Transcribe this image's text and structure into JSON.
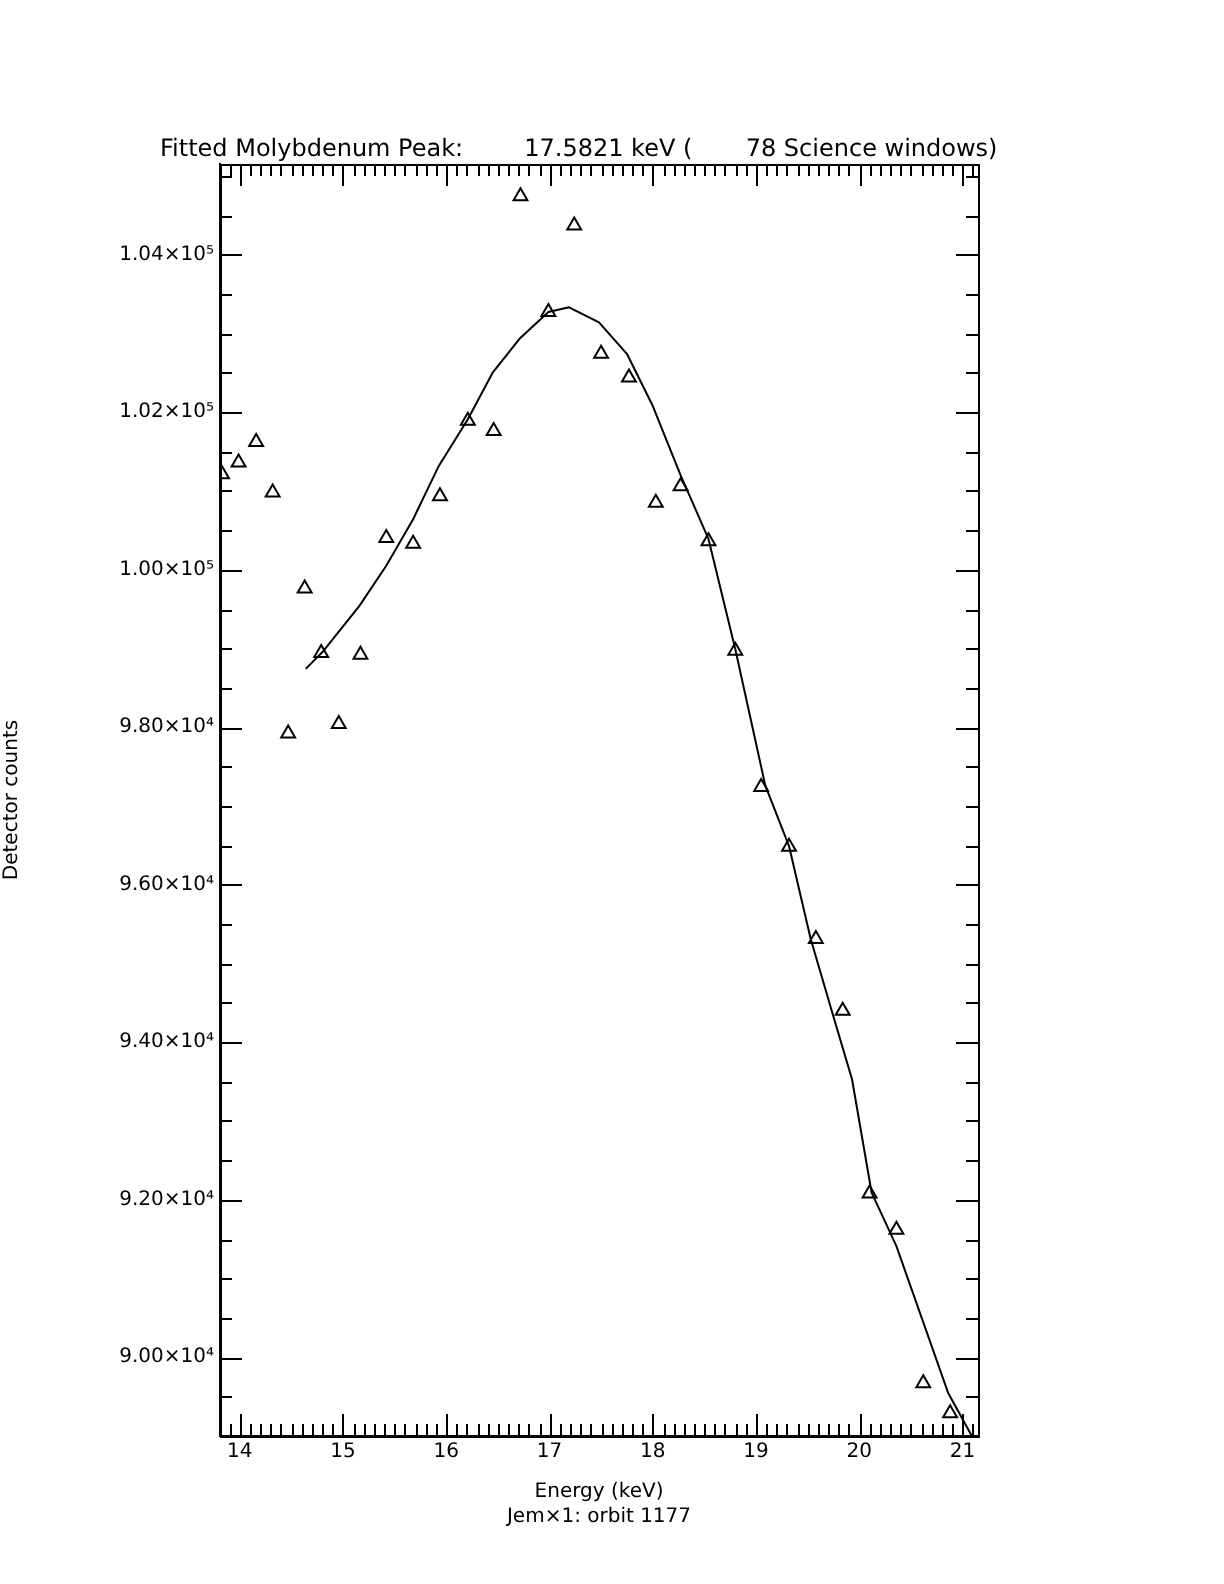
{
  "chart_data": {
    "type": "scatter",
    "title": "Fitted Molybdenum Peak:        17.5821 keV (       78 Science windows)",
    "xlabel": "Energy (keV)",
    "ylabel": "Detector counts",
    "annotations": [
      "Jem×1: orbit 1177"
    ],
    "xlim": [
      13.81,
      21.15
    ],
    "ylim": [
      89000,
      105150
    ],
    "xticks": [
      {
        "value": 13.9,
        "label": null
      },
      {
        "value": 14,
        "label": "14"
      },
      {
        "value": 14.1,
        "label": null
      },
      {
        "value": 14.2,
        "label": null
      },
      {
        "value": 14.3,
        "label": null
      },
      {
        "value": 14.4,
        "label": null
      },
      {
        "value": 14.5,
        "label": null
      },
      {
        "value": 14.6,
        "label": null
      },
      {
        "value": 14.7,
        "label": null
      },
      {
        "value": 14.8,
        "label": null
      },
      {
        "value": 14.9,
        "label": null
      },
      {
        "value": 15,
        "label": "15"
      },
      {
        "value": 15.1,
        "label": null
      },
      {
        "value": 15.2,
        "label": null
      },
      {
        "value": 15.3,
        "label": null
      },
      {
        "value": 15.4,
        "label": null
      },
      {
        "value": 15.5,
        "label": null
      },
      {
        "value": 15.6,
        "label": null
      },
      {
        "value": 15.7,
        "label": null
      },
      {
        "value": 15.8,
        "label": null
      },
      {
        "value": 15.9,
        "label": null
      },
      {
        "value": 16,
        "label": "16"
      },
      {
        "value": 16.1,
        "label": null
      },
      {
        "value": 16.2,
        "label": null
      },
      {
        "value": 16.3,
        "label": null
      },
      {
        "value": 16.4,
        "label": null
      },
      {
        "value": 16.5,
        "label": null
      },
      {
        "value": 16.6,
        "label": null
      },
      {
        "value": 16.7,
        "label": null
      },
      {
        "value": 16.8,
        "label": null
      },
      {
        "value": 16.9,
        "label": null
      },
      {
        "value": 17,
        "label": "17"
      },
      {
        "value": 17.1,
        "label": null
      },
      {
        "value": 17.2,
        "label": null
      },
      {
        "value": 17.3,
        "label": null
      },
      {
        "value": 17.4,
        "label": null
      },
      {
        "value": 17.5,
        "label": null
      },
      {
        "value": 17.6,
        "label": null
      },
      {
        "value": 17.7,
        "label": null
      },
      {
        "value": 17.8,
        "label": null
      },
      {
        "value": 17.9,
        "label": null
      },
      {
        "value": 18,
        "label": "18"
      },
      {
        "value": 18.1,
        "label": null
      },
      {
        "value": 18.2,
        "label": null
      },
      {
        "value": 18.3,
        "label": null
      },
      {
        "value": 18.4,
        "label": null
      },
      {
        "value": 18.5,
        "label": null
      },
      {
        "value": 18.6,
        "label": null
      },
      {
        "value": 18.7,
        "label": null
      },
      {
        "value": 18.8,
        "label": null
      },
      {
        "value": 18.9,
        "label": null
      },
      {
        "value": 19,
        "label": "19"
      },
      {
        "value": 19.1,
        "label": null
      },
      {
        "value": 19.2,
        "label": null
      },
      {
        "value": 19.3,
        "label": null
      },
      {
        "value": 19.4,
        "label": null
      },
      {
        "value": 19.5,
        "label": null
      },
      {
        "value": 19.6,
        "label": null
      },
      {
        "value": 19.7,
        "label": null
      },
      {
        "value": 19.8,
        "label": null
      },
      {
        "value": 19.9,
        "label": null
      },
      {
        "value": 20,
        "label": "20"
      },
      {
        "value": 20.1,
        "label": null
      },
      {
        "value": 20.2,
        "label": null
      },
      {
        "value": 20.3,
        "label": null
      },
      {
        "value": 20.4,
        "label": null
      },
      {
        "value": 20.5,
        "label": null
      },
      {
        "value": 20.6,
        "label": null
      },
      {
        "value": 20.7,
        "label": null
      },
      {
        "value": 20.8,
        "label": null
      },
      {
        "value": 20.9,
        "label": null
      },
      {
        "value": 21,
        "label": "21"
      },
      {
        "value": 21.1,
        "label": null
      }
    ],
    "yticks": [
      {
        "value": 89500,
        "label": null
      },
      {
        "value": 90000,
        "label": "9.00×10⁴"
      },
      {
        "value": 90500,
        "label": null
      },
      {
        "value": 91000,
        "label": null
      },
      {
        "value": 91500,
        "label": null
      },
      {
        "value": 92000,
        "label": "9.20×10⁴"
      },
      {
        "value": 92500,
        "label": null
      },
      {
        "value": 93000,
        "label": null
      },
      {
        "value": 93500,
        "label": null
      },
      {
        "value": 94000,
        "label": "9.40×10⁴"
      },
      {
        "value": 94500,
        "label": null
      },
      {
        "value": 95000,
        "label": null
      },
      {
        "value": 95500,
        "label": null
      },
      {
        "value": 96000,
        "label": "9.60×10⁴"
      },
      {
        "value": 96500,
        "label": null
      },
      {
        "value": 97000,
        "label": null
      },
      {
        "value": 97500,
        "label": null
      },
      {
        "value": 98000,
        "label": "9.80×10⁴"
      },
      {
        "value": 98500,
        "label": null
      },
      {
        "value": 99000,
        "label": null
      },
      {
        "value": 99500,
        "label": null
      },
      {
        "value": 100000,
        "label": "1.00×10⁵"
      },
      {
        "value": 100500,
        "label": null
      },
      {
        "value": 101000,
        "label": null
      },
      {
        "value": 101500,
        "label": null
      },
      {
        "value": 102000,
        "label": "1.02×10⁵"
      },
      {
        "value": 102500,
        "label": null
      },
      {
        "value": 103000,
        "label": null
      },
      {
        "value": 103500,
        "label": null
      },
      {
        "value": 104000,
        "label": "1.04×10⁵"
      },
      {
        "value": 104500,
        "label": null
      },
      {
        "value": 105000,
        "label": null
      }
    ],
    "series": [
      {
        "color": "#000000",
        "marker": "triangle",
        "x": [
          13.83,
          13.99,
          14.16,
          14.32,
          14.47,
          14.63,
          14.79,
          14.96,
          15.17,
          15.42,
          15.68,
          15.94,
          16.21,
          16.46,
          16.72,
          16.99,
          17.24,
          17.5,
          17.77,
          18.03,
          18.27,
          18.54,
          18.8,
          19.05,
          19.32,
          19.58,
          19.84,
          20.1,
          20.36,
          20.62,
          20.88
        ],
        "values": [
          101210,
          101360,
          101620,
          100980,
          97920,
          99760,
          98940,
          98040,
          98920,
          100400,
          100330,
          100930,
          101890,
          101760,
          104740,
          103270,
          104370,
          102740,
          102440,
          100850,
          101060,
          100360,
          98970,
          97240,
          96480,
          95310,
          94400,
          92080,
          91620,
          89670,
          89290
        ]
      },
      {
        "type": "line",
        "color": "#000000",
        "marker": "none",
        "line_style": "solid",
        "x": [
          14.64,
          14.8,
          15.16,
          15.42,
          15.68,
          15.93,
          16.21,
          16.45,
          16.71,
          16.99,
          17.19,
          17.48,
          17.75,
          18.0,
          18.27,
          18.54,
          18.8,
          19.09,
          19.32,
          19.53,
          19.74,
          19.93,
          20.12,
          20.36,
          20.61,
          20.86,
          21.09
        ],
        "values": [
          98740,
          98950,
          99540,
          100050,
          100640,
          101320,
          101910,
          102500,
          102930,
          103270,
          103330,
          103140,
          102740,
          102080,
          101200,
          100390,
          98990,
          97260,
          96490,
          95310,
          94370,
          93530,
          92090,
          91410,
          90480,
          89550,
          89000
        ]
      }
    ]
  }
}
